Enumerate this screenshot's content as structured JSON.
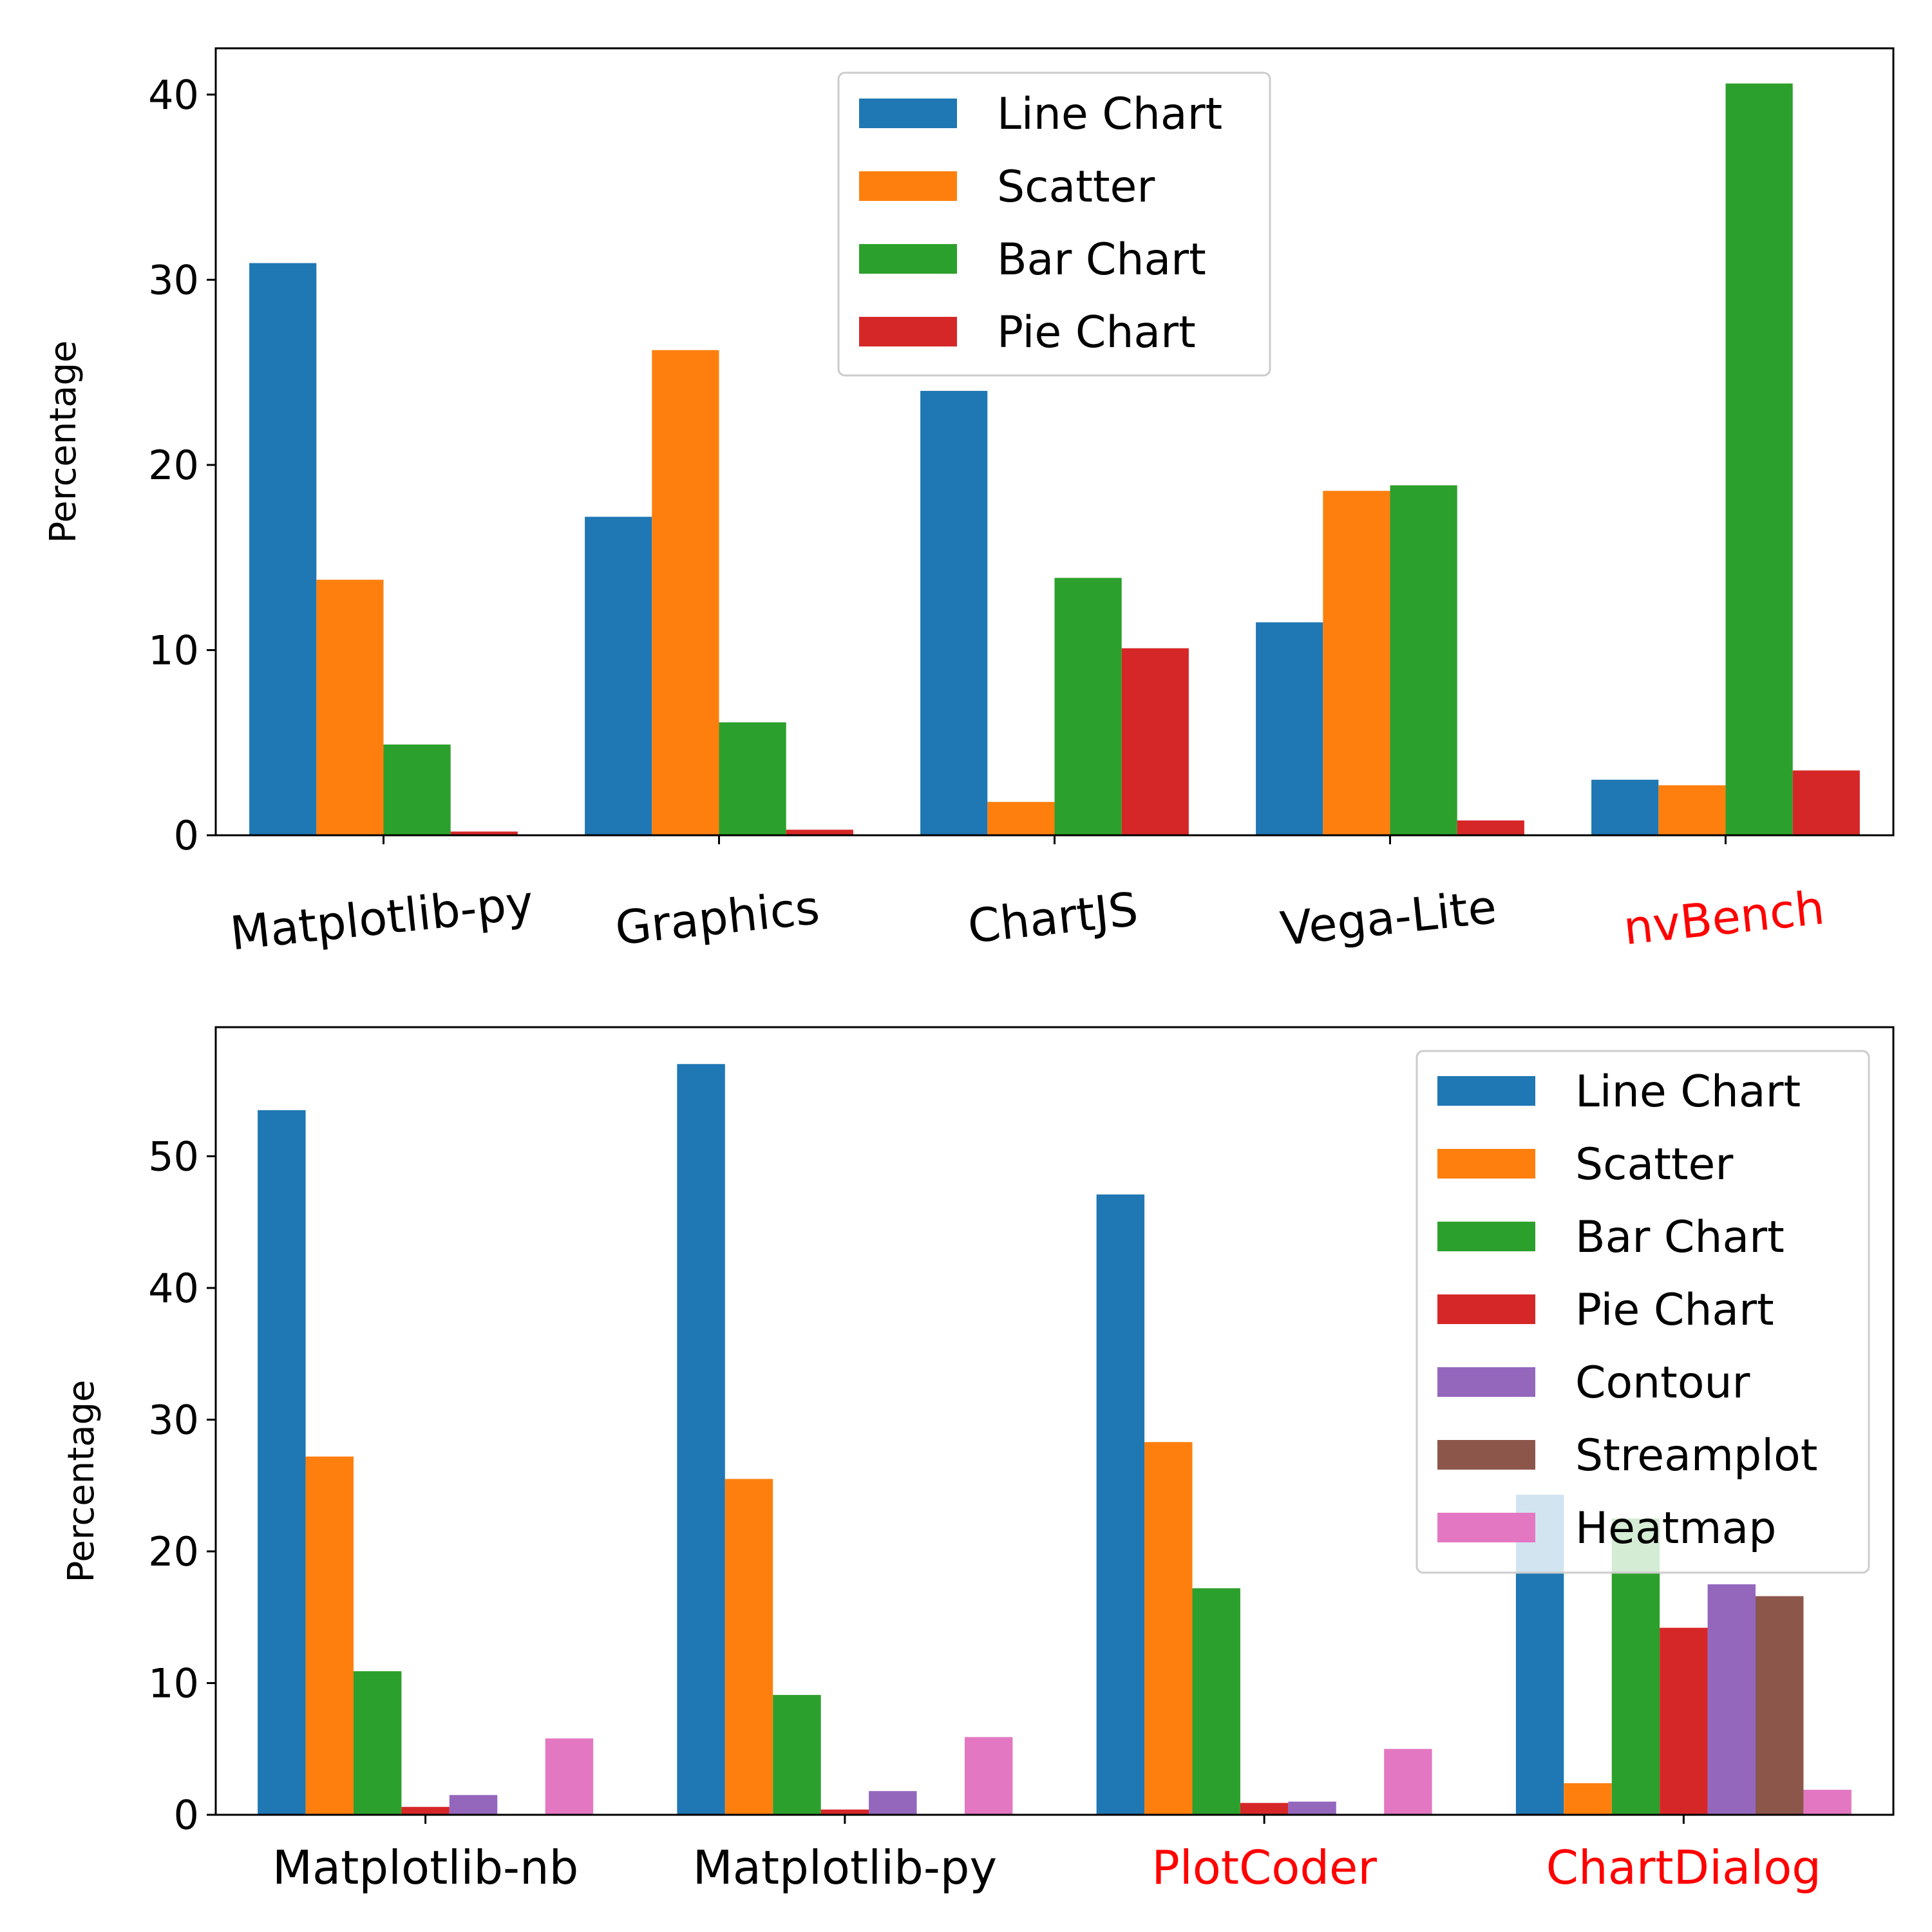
{
  "chart_data": [
    {
      "type": "bar",
      "title": "",
      "xlabel": "",
      "ylabel": "Percentage",
      "ylim": [
        0,
        42.5
      ],
      "yticks": [
        0,
        10,
        20,
        30,
        40
      ],
      "categories": [
        "Matplotlib-py",
        "Graphics",
        "ChartJS",
        "Vega-Lite",
        "nvBench"
      ],
      "category_colors": [
        "#000000",
        "#000000",
        "#000000",
        "#000000",
        "#ff0000"
      ],
      "category_label_rotation": "slight counter-clockwise",
      "legend_position": "top-center",
      "series": [
        {
          "name": "Line Chart",
          "color": "#1f77b4",
          "values": [
            30.9,
            17.2,
            24.0,
            11.5,
            3.0
          ]
        },
        {
          "name": "Scatter",
          "color": "#ff7f0e",
          "values": [
            13.8,
            26.2,
            1.8,
            18.6,
            2.7
          ]
        },
        {
          "name": "Bar Chart",
          "color": "#2ca02c",
          "values": [
            4.9,
            6.1,
            13.9,
            18.9,
            40.6
          ]
        },
        {
          "name": "Pie Chart",
          "color": "#d62728",
          "values": [
            0.2,
            0.3,
            10.1,
            0.8,
            3.5
          ]
        }
      ]
    },
    {
      "type": "bar",
      "title": "",
      "xlabel": "",
      "ylabel": "Percentage",
      "ylim": [
        0,
        59.8
      ],
      "yticks": [
        0,
        10,
        20,
        30,
        40,
        50
      ],
      "categories": [
        "Matplotlib-nb",
        "Matplotlib-py",
        "PlotCoder",
        "ChartDialog"
      ],
      "category_colors": [
        "#000000",
        "#000000",
        "#ff0000",
        "#ff0000"
      ],
      "legend_position": "top-right",
      "series": [
        {
          "name": "Line Chart",
          "color": "#1f77b4",
          "values": [
            53.5,
            57.0,
            47.1,
            24.3
          ]
        },
        {
          "name": "Scatter",
          "color": "#ff7f0e",
          "values": [
            27.2,
            25.5,
            28.3,
            2.4
          ]
        },
        {
          "name": "Bar Chart",
          "color": "#2ca02c",
          "values": [
            10.9,
            9.1,
            17.2,
            22.5
          ]
        },
        {
          "name": "Pie Chart",
          "color": "#d62728",
          "values": [
            0.6,
            0.4,
            0.9,
            14.2
          ]
        },
        {
          "name": "Contour",
          "color": "#9467bd",
          "values": [
            1.5,
            1.8,
            1.0,
            17.5
          ]
        },
        {
          "name": "Streamplot",
          "color": "#8c564b",
          "values": [
            0.0,
            0.0,
            0.0,
            16.6
          ]
        },
        {
          "name": "Heatmap",
          "color": "#e377c2",
          "values": [
            5.8,
            5.9,
            5.0,
            1.9
          ]
        }
      ]
    }
  ]
}
